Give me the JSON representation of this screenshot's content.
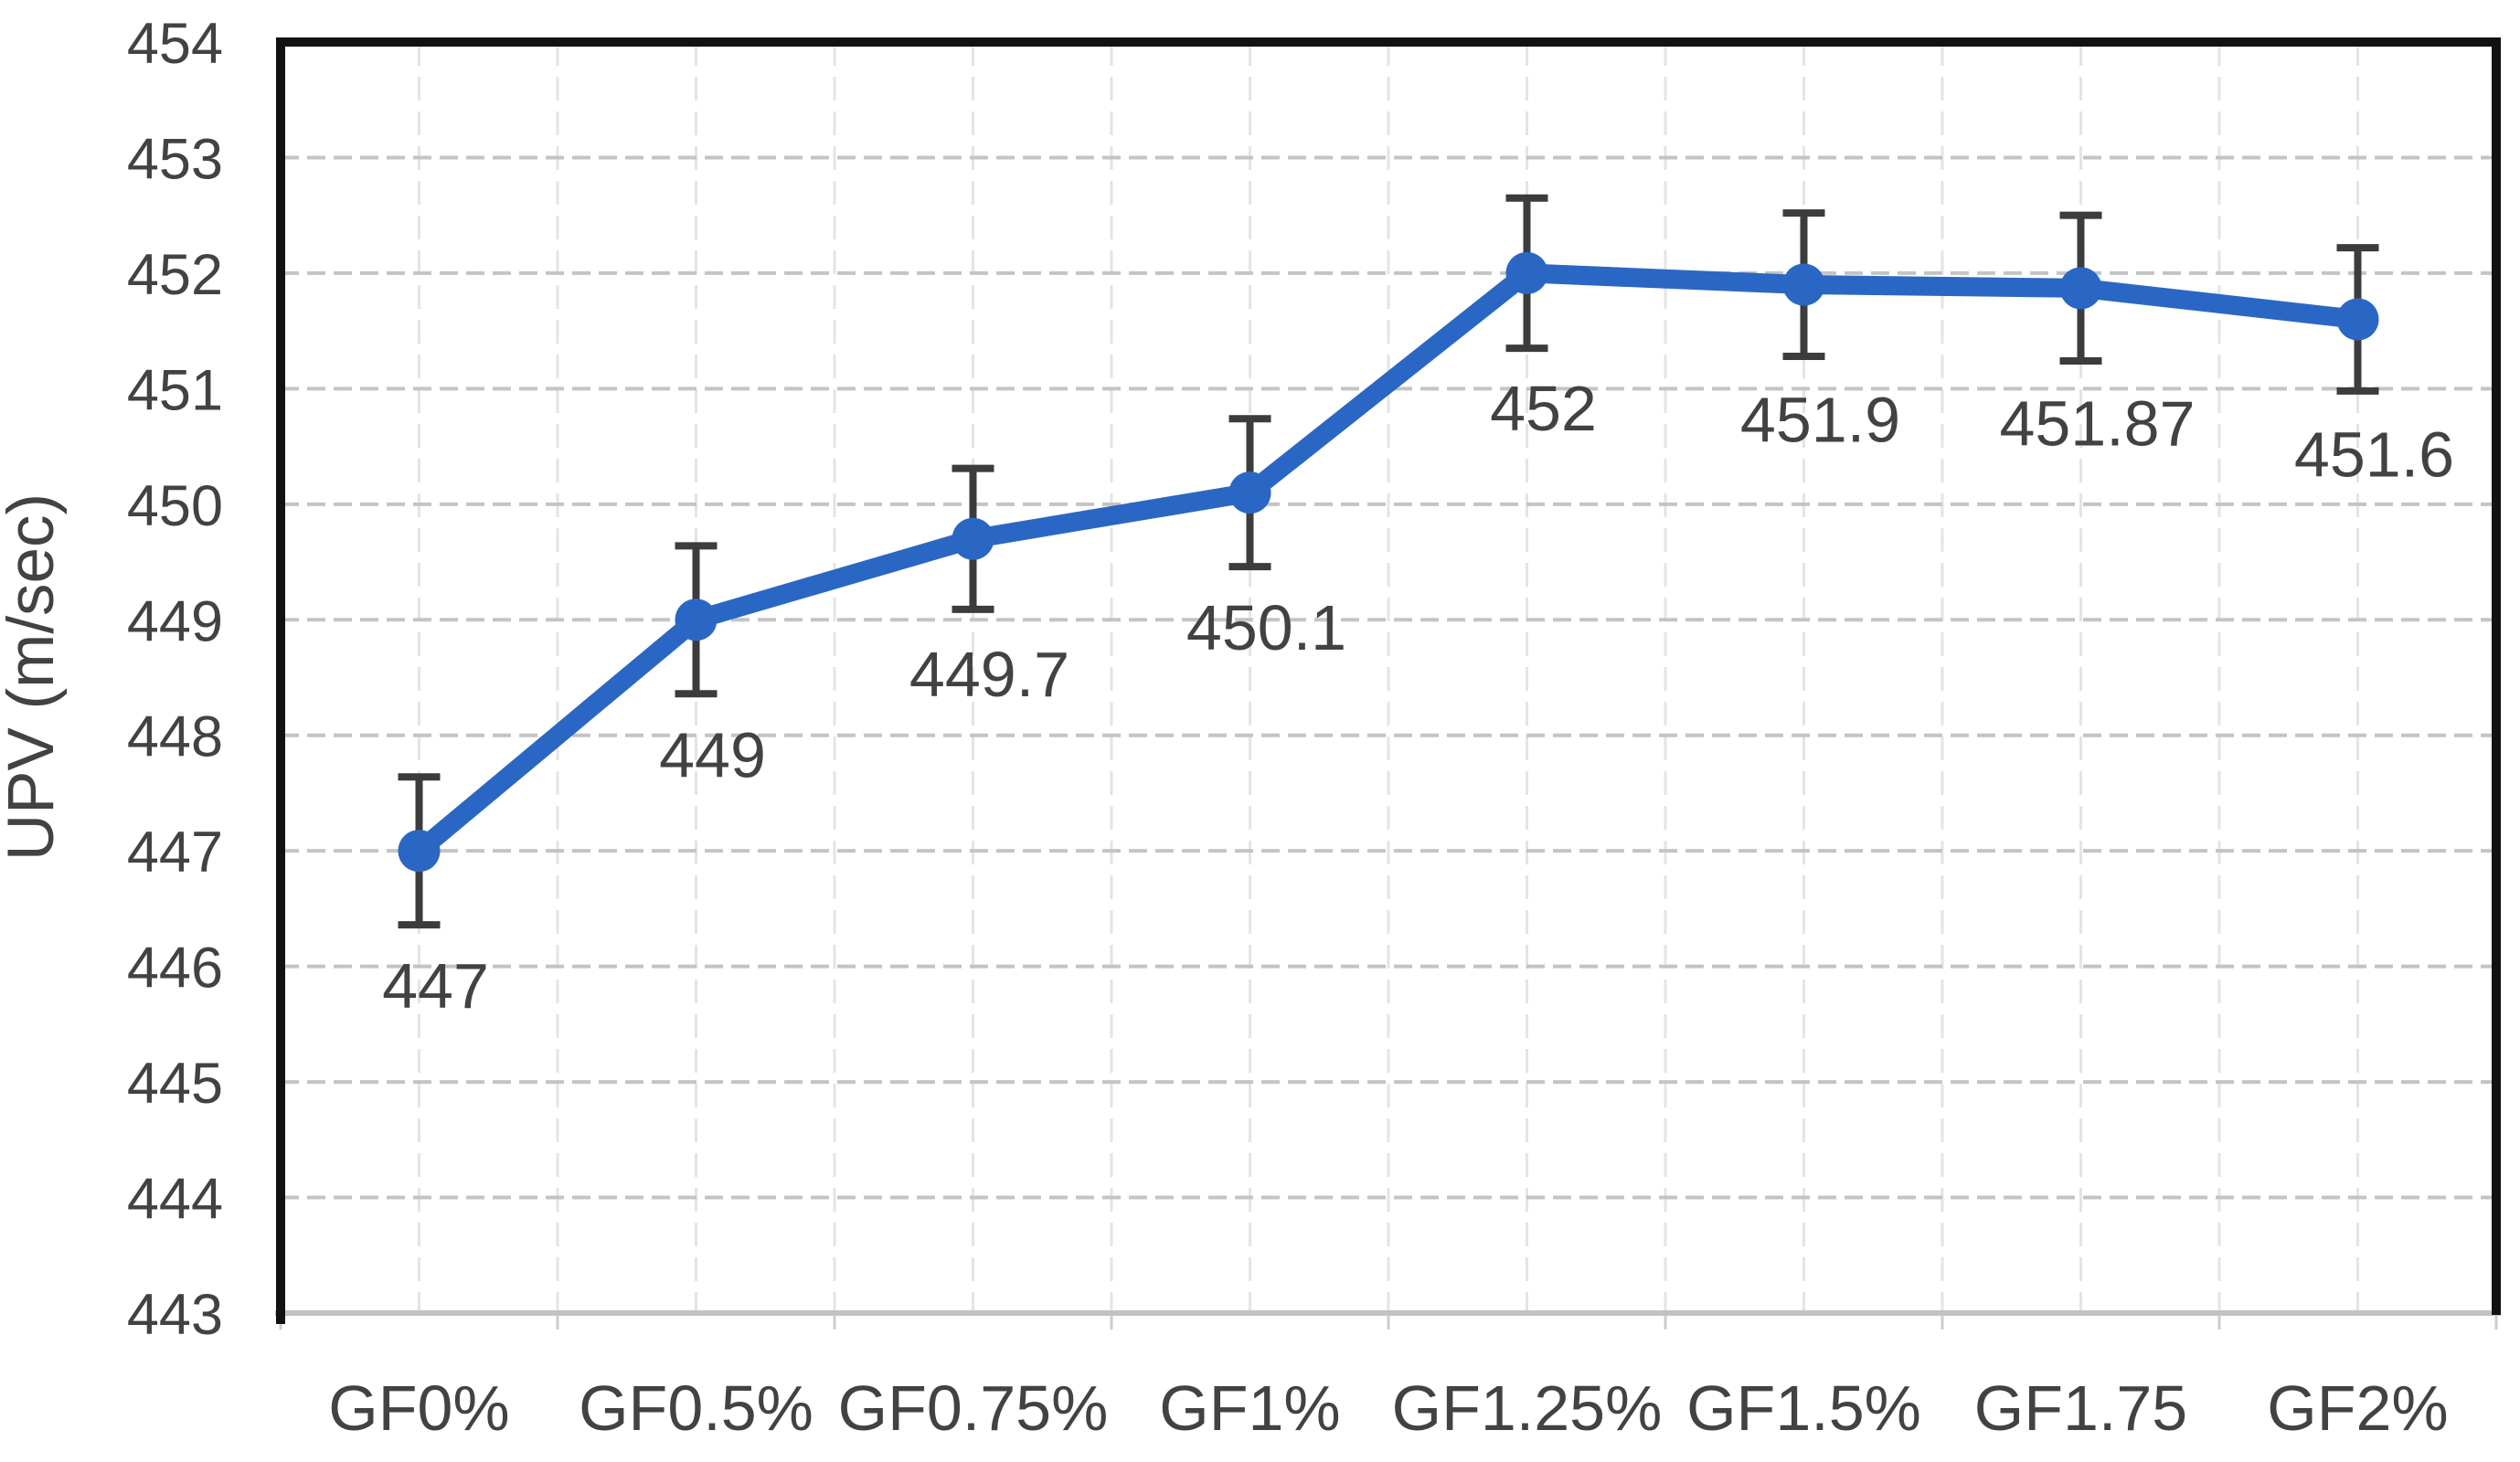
{
  "chart_data": {
    "type": "line",
    "title": "",
    "xlabel": "",
    "ylabel": "UPV (m/sec)",
    "categories": [
      "GF0%",
      "GF0.5%",
      "GF0.75%",
      "GF1%",
      "GF1.25%",
      "GF1.5%",
      "GF1.75",
      "GF2%"
    ],
    "series": [
      {
        "name": "UPV",
        "values": [
          447,
          449,
          449.7,
          450.1,
          452,
          451.9,
          451.87,
          451.6
        ],
        "data_labels": [
          "447",
          "449",
          "449.7",
          "450.1",
          "452",
          "451.9",
          "451.87",
          "451.6"
        ],
        "error_bars": [
          0.64,
          0.64,
          0.61,
          0.64,
          0.65,
          0.62,
          0.63,
          0.62
        ]
      }
    ],
    "ylim": [
      443,
      454
    ],
    "y_tick_step": 1,
    "y_ticks": [
      "443",
      "444",
      "445",
      "446",
      "447",
      "448",
      "449",
      "450",
      "451",
      "452",
      "453",
      "454"
    ],
    "legend_position": "none",
    "grid": {
      "horizontal_major": "dashed",
      "vertical_minor": "dashed"
    },
    "marker": "circle",
    "colors": {
      "line": "#2A67C4",
      "marker": "#2A67C4",
      "error_bar": "#3C3C3C",
      "grid_major": "#C4C4C4",
      "grid_minor": "#E4E4E4",
      "plot_border": "#121212",
      "x_axis_line": "#C2C2C2",
      "tick_mark": "#CCCCCC",
      "text": "#424242"
    }
  }
}
